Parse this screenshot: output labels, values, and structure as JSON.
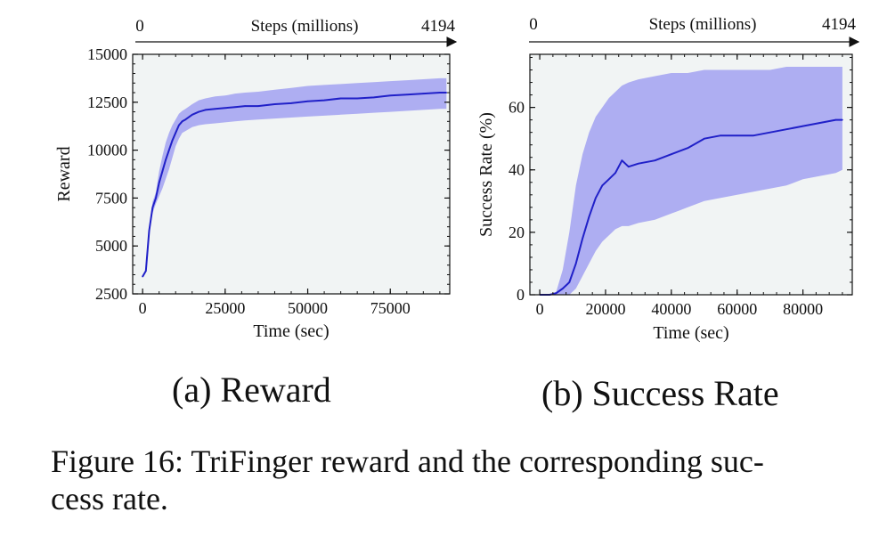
{
  "figure": {
    "caption_line1": "Figure 16: TriFinger reward and the corresponding suc-",
    "caption_line2": "cess rate.",
    "subcaption_a": "(a) Reward",
    "subcaption_b": "(b) Success Rate"
  },
  "colors": {
    "line": "#2020c8",
    "band": "#a6a6f2",
    "plot_background": "#f1f4f4",
    "axis": "#111111"
  },
  "chart_data": [
    {
      "type": "line",
      "panel": "a",
      "xlabel": "Time (sec)",
      "ylabel": "Reward",
      "top_axis": {
        "label": "Steps (millions)",
        "start": "0",
        "end": "4194"
      },
      "xlim": [
        -3000,
        93000
      ],
      "ylim": [
        2500,
        15000
      ],
      "xticks": [
        0,
        25000,
        50000,
        75000
      ],
      "yticks": [
        2500,
        5000,
        7500,
        10000,
        12500,
        15000
      ],
      "grid": false,
      "series": [
        {
          "x": [
            0,
            1000,
            2000,
            3000,
            4000,
            5000,
            6000,
            7000,
            8000,
            9000,
            10000,
            11000,
            12000,
            13000,
            15000,
            17000,
            19000,
            22000,
            25000,
            28000,
            31000,
            35000,
            40000,
            45000,
            50000,
            55000,
            60000,
            65000,
            70000,
            75000,
            80000,
            85000,
            90000,
            92000
          ],
          "y": [
            3400,
            3700,
            5800,
            7000,
            7500,
            8300,
            8900,
            9500,
            10000,
            10500,
            10900,
            11300,
            11500,
            11600,
            11850,
            12000,
            12100,
            12150,
            12200,
            12250,
            12300,
            12300,
            12400,
            12450,
            12550,
            12600,
            12700,
            12700,
            12750,
            12850,
            12900,
            12950,
            13000,
            13000
          ],
          "lower": [
            3400,
            3700,
            5600,
            6700,
            7200,
            7600,
            8000,
            8500,
            9000,
            9600,
            10200,
            10600,
            10900,
            11000,
            11200,
            11300,
            11350,
            11400,
            11450,
            11500,
            11550,
            11600,
            11650,
            11700,
            11750,
            11800,
            11850,
            11900,
            11950,
            12000,
            12050,
            12100,
            12150,
            12150
          ],
          "upper": [
            3400,
            3700,
            6000,
            7300,
            7800,
            8900,
            9700,
            10400,
            10900,
            11300,
            11600,
            11900,
            12050,
            12150,
            12400,
            12600,
            12700,
            12800,
            12850,
            12950,
            13000,
            13050,
            13150,
            13250,
            13350,
            13400,
            13450,
            13500,
            13550,
            13600,
            13650,
            13700,
            13750,
            13750
          ]
        }
      ]
    },
    {
      "type": "line",
      "panel": "b",
      "xlabel": "Time (sec)",
      "ylabel": "Success Rate (%)",
      "top_axis": {
        "label": "Steps (millions)",
        "start": "0",
        "end": "4194"
      },
      "xlim": [
        -3000,
        95000
      ],
      "ylim": [
        0,
        77
      ],
      "xticks": [
        0,
        20000,
        40000,
        60000,
        80000
      ],
      "yticks": [
        0,
        20,
        40,
        60
      ],
      "grid": false,
      "series": [
        {
          "x": [
            0,
            3000,
            5000,
            7000,
            9000,
            11000,
            13000,
            15000,
            17000,
            19000,
            21000,
            23000,
            25000,
            27000,
            30000,
            35000,
            40000,
            45000,
            50000,
            55000,
            60000,
            65000,
            70000,
            75000,
            80000,
            85000,
            90000,
            92000
          ],
          "y": [
            0,
            0,
            0.5,
            2,
            4,
            10,
            18,
            25,
            31,
            35,
            37,
            39,
            43,
            41,
            42,
            43,
            45,
            47,
            50,
            51,
            51,
            51,
            52,
            53,
            54,
            55,
            56,
            56
          ],
          "lower": [
            0,
            0,
            0,
            0,
            0,
            2,
            6,
            10,
            14,
            17,
            19,
            21,
            22,
            22,
            23,
            24,
            26,
            28,
            30,
            31,
            32,
            33,
            34,
            35,
            37,
            38,
            39,
            40
          ],
          "upper": [
            0,
            0,
            1,
            8,
            20,
            35,
            45,
            52,
            57,
            60,
            63,
            65,
            67,
            68,
            69,
            70,
            71,
            71,
            72,
            72,
            72,
            72,
            72,
            73,
            73,
            73,
            73,
            73
          ]
        }
      ]
    }
  ]
}
